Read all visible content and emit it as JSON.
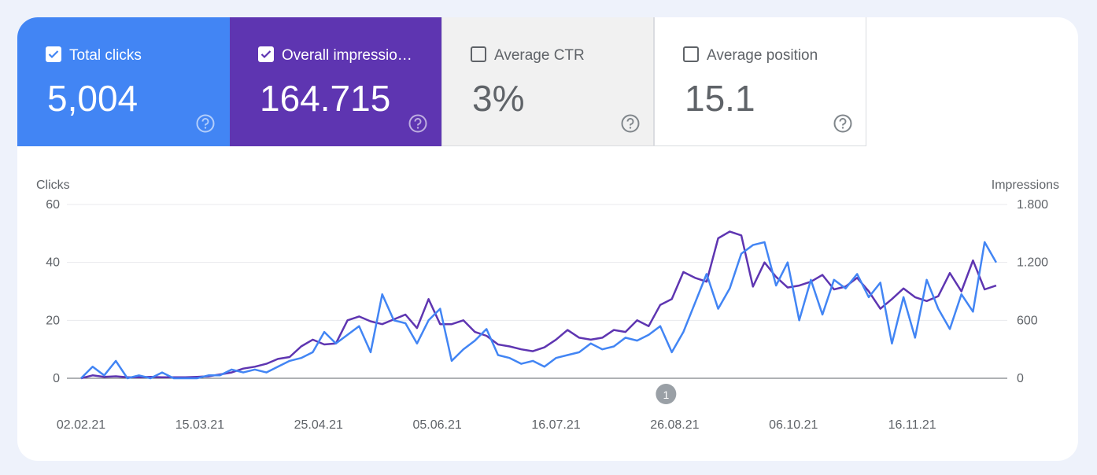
{
  "cards": [
    {
      "label": "Total clicks",
      "value": "5,004",
      "checked": true,
      "color": "#4285f4"
    },
    {
      "label": "Overall impressio…",
      "value": "164.715",
      "checked": true,
      "color": "#5e35b1"
    },
    {
      "label": "Average CTR",
      "value": "3%",
      "checked": false,
      "color": "#f1f1f1"
    },
    {
      "label": "Average position",
      "value": "15.1",
      "checked": false,
      "color": "#ffffff"
    }
  ],
  "chart_data": {
    "type": "line",
    "y_label": "Clicks",
    "y2_label": "Impressions",
    "x": [
      "02.02.21",
      "06.02.21",
      "10.02.21",
      "14.02.21",
      "18.02.21",
      "22.02.21",
      "26.02.21",
      "02.03.21",
      "06.03.21",
      "10.03.21",
      "14.03.21",
      "18.03.21",
      "22.03.21",
      "26.03.21",
      "30.03.21",
      "03.04.21",
      "07.04.21",
      "11.04.21",
      "15.04.21",
      "19.04.21",
      "23.04.21",
      "27.04.21",
      "01.05.21",
      "05.05.21",
      "09.05.21",
      "13.05.21",
      "17.05.21",
      "21.05.21",
      "25.05.21",
      "29.05.21",
      "02.06.21",
      "06.06.21",
      "10.06.21",
      "14.06.21",
      "18.06.21",
      "22.06.21",
      "26.06.21",
      "30.06.21",
      "04.07.21",
      "08.07.21",
      "12.07.21",
      "16.07.21",
      "20.07.21",
      "24.07.21",
      "28.07.21",
      "01.08.21",
      "05.08.21",
      "09.08.21",
      "13.08.21",
      "17.08.21",
      "21.08.21",
      "25.08.21",
      "29.08.21",
      "02.09.21",
      "06.09.21",
      "10.09.21",
      "14.09.21",
      "18.09.21",
      "22.09.21",
      "26.09.21",
      "30.09.21",
      "04.10.21",
      "08.10.21",
      "12.10.21",
      "16.10.21",
      "20.10.21",
      "24.10.21",
      "28.10.21",
      "01.11.21",
      "05.11.21",
      "09.11.21",
      "13.11.21",
      "17.11.21",
      "21.11.21",
      "25.11.21",
      "29.11.21",
      "03.12.21",
      "07.12.21",
      "11.12.21",
      "15.12.21"
    ],
    "series": [
      {
        "name": "Clicks",
        "color": "#4285f4",
        "values": [
          0,
          4,
          1,
          6,
          0,
          1,
          0,
          2,
          0,
          0,
          0,
          1,
          1,
          3,
          2,
          3,
          2,
          4,
          6,
          7,
          9,
          16,
          12,
          15,
          18,
          9,
          29,
          20,
          19,
          12,
          20,
          24,
          6,
          10,
          13,
          17,
          8,
          7,
          5,
          6,
          4,
          7,
          8,
          9,
          12,
          10,
          11,
          14,
          13,
          15,
          18,
          9,
          16,
          26,
          36,
          24,
          31,
          43,
          46,
          47,
          32,
          40,
          20,
          34,
          22,
          34,
          31,
          36,
          28,
          33,
          12,
          28,
          14,
          34,
          24,
          17,
          29,
          23,
          47,
          40
        ]
      },
      {
        "name": "Impressions",
        "color": "#5e35b1",
        "axis": "y2",
        "values": [
          0,
          30,
          15,
          20,
          10,
          10,
          15,
          10,
          10,
          10,
          15,
          20,
          40,
          60,
          100,
          120,
          150,
          200,
          220,
          330,
          400,
          350,
          360,
          600,
          640,
          590,
          560,
          610,
          660,
          520,
          820,
          560,
          560,
          600,
          480,
          440,
          350,
          330,
          300,
          280,
          320,
          400,
          500,
          420,
          400,
          420,
          500,
          480,
          600,
          540,
          760,
          820,
          1100,
          1040,
          1000,
          1450,
          1520,
          1480,
          950,
          1200,
          1050,
          940,
          960,
          1000,
          1070,
          920,
          950,
          1040,
          900,
          720,
          820,
          930,
          840,
          800,
          850,
          1090,
          900,
          1220,
          920,
          960
        ]
      }
    ],
    "ylim": [
      0,
      60
    ],
    "yticks": [
      0,
      20,
      40,
      60
    ],
    "y2lim": [
      0,
      1800
    ],
    "y2ticks": [
      0,
      600,
      {
        "value": 1200,
        "label": "1.200"
      },
      {
        "value": 1800,
        "label": "1.800"
      }
    ],
    "xticks": [
      "02.02.21",
      "15.03.21",
      "25.04.21",
      "05.06.21",
      "16.07.21",
      "26.08.21",
      "06.10.21",
      "16.11.21"
    ],
    "grid": true,
    "annotations": [
      {
        "x": "23.08.21",
        "label": "1"
      }
    ]
  }
}
